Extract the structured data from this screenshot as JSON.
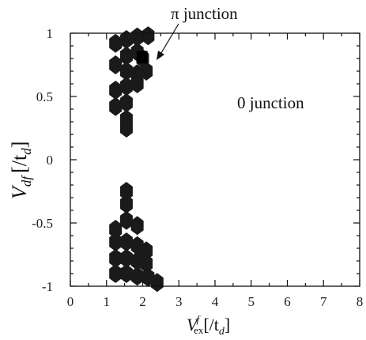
{
  "chart_data": {
    "type": "heatmap",
    "title": "",
    "xlabel_main": "V",
    "xlabel_sup": "f",
    "xlabel_sub": "ex",
    "xlabel_unit": "[/t",
    "xlabel_unit_sub": "d",
    "xlabel_unit_close": "]",
    "ylabel_main": "V",
    "ylabel_sub": "df",
    "ylabel_unit": "[/t",
    "ylabel_unit_sub": "d",
    "ylabel_unit_close": "]",
    "xlim": [
      0,
      8
    ],
    "ylim": [
      -1,
      1
    ],
    "xticks": [
      "0",
      "1",
      "2",
      "3",
      "4",
      "5",
      "6",
      "7",
      "8"
    ],
    "yticks": [
      "1",
      "0.5",
      "0",
      "-0.5",
      "-1"
    ],
    "grid": false,
    "legend": "none",
    "annotations": [
      {
        "text": "π junction",
        "points_to": {
          "x": 2.35,
          "y": 0.8
        }
      },
      {
        "text": "0 junction"
      }
    ],
    "regions": [
      {
        "label": "π junction",
        "color": "#1a1a1a",
        "cells": [
          [
            1.25,
            0.92
          ],
          [
            1.55,
            0.95
          ],
          [
            1.85,
            0.97
          ],
          [
            2.15,
            0.98
          ],
          [
            1.55,
            0.82
          ],
          [
            1.85,
            0.85
          ],
          [
            2.0,
            0.8
          ],
          [
            1.25,
            0.75
          ],
          [
            1.55,
            0.7
          ],
          [
            1.85,
            0.68
          ],
          [
            2.1,
            0.7
          ],
          [
            1.25,
            0.55
          ],
          [
            1.55,
            0.58
          ],
          [
            1.85,
            0.6
          ],
          [
            1.25,
            0.42
          ],
          [
            1.55,
            0.45
          ],
          [
            1.55,
            0.32
          ],
          [
            1.55,
            0.25
          ],
          [
            1.55,
            -0.25
          ],
          [
            1.55,
            -0.35
          ],
          [
            1.55,
            -0.48
          ],
          [
            1.25,
            -0.55
          ],
          [
            1.85,
            -0.52
          ],
          [
            1.25,
            -0.65
          ],
          [
            1.55,
            -0.65
          ],
          [
            1.85,
            -0.68
          ],
          [
            2.1,
            -0.72
          ],
          [
            1.25,
            -0.78
          ],
          [
            1.55,
            -0.78
          ],
          [
            1.85,
            -0.8
          ],
          [
            2.1,
            -0.82
          ],
          [
            1.25,
            -0.9
          ],
          [
            1.55,
            -0.9
          ],
          [
            1.85,
            -0.92
          ],
          [
            2.15,
            -0.93
          ],
          [
            2.4,
            -0.97
          ]
        ]
      }
    ]
  }
}
